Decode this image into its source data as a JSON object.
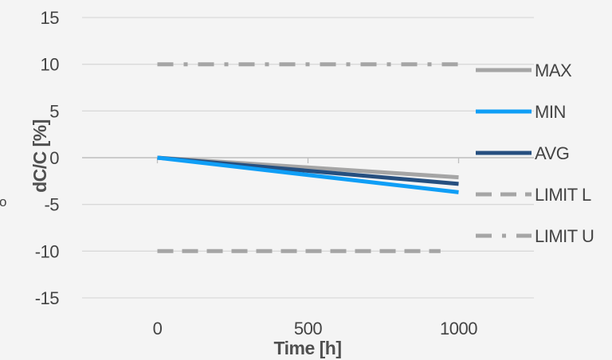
{
  "chart_data": {
    "type": "line",
    "title": "",
    "xlabel": "Time [h]",
    "ylabel": "dC/C [%]",
    "xlim": [
      -250,
      1250
    ],
    "ylim": [
      -15,
      15
    ],
    "x_ticks": [
      0,
      500,
      1000
    ],
    "y_ticks": [
      15,
      10,
      5,
      0,
      -5,
      -10,
      -15
    ],
    "grid": {
      "horizontal": true,
      "vertical": false
    },
    "legend_position": "right",
    "series": [
      {
        "name": "MAX",
        "color": "#a5a5a5",
        "dash": "solid",
        "x": [
          0,
          1000
        ],
        "y": [
          0,
          -2.1
        ]
      },
      {
        "name": "MIN",
        "color": "#0f9ef6",
        "dash": "solid",
        "x": [
          0,
          1000
        ],
        "y": [
          0,
          -3.7
        ]
      },
      {
        "name": "AVG",
        "color": "#264f7f",
        "dash": "solid",
        "x": [
          0,
          1000
        ],
        "y": [
          0,
          -2.8
        ]
      },
      {
        "name": "LIMIT L",
        "color": "#a5a5a5",
        "dash": "dash",
        "x": [
          0,
          940
        ],
        "y": [
          -10,
          -10
        ]
      },
      {
        "name": "LIMIT U",
        "color": "#a5a5a5",
        "dash": "dashdot",
        "x": [
          0,
          1000
        ],
        "y": [
          10,
          10
        ]
      }
    ],
    "edge_fragment": "o"
  }
}
